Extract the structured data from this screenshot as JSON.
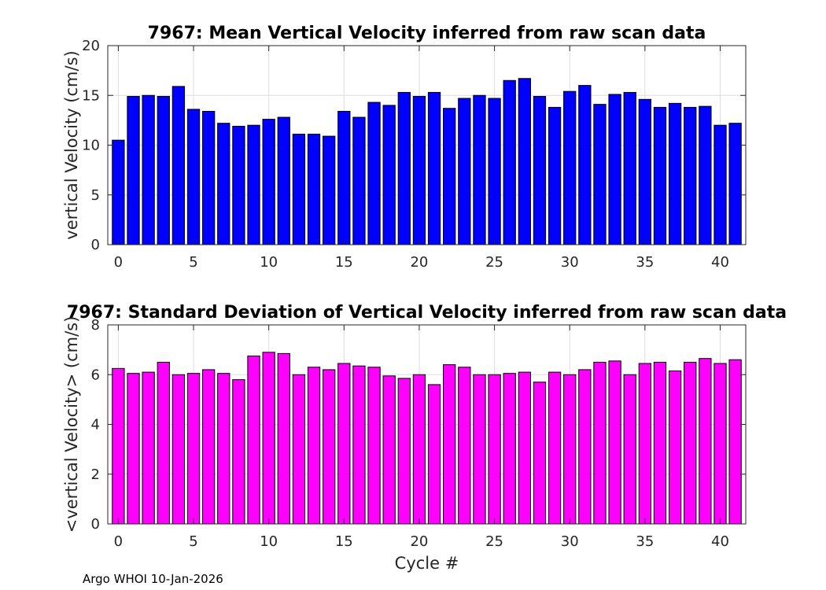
{
  "footer": "Argo WHOI 10-Jan-2026",
  "chart_data": [
    {
      "type": "bar",
      "title": "7967: Mean Vertical Velocity inferred from raw scan data",
      "xlabel": "",
      "ylabel": "vertical Velocity (cm/s)",
      "color": "#0000ff",
      "x": [
        0,
        1,
        2,
        3,
        4,
        5,
        6,
        7,
        8,
        9,
        10,
        11,
        12,
        13,
        14,
        15,
        16,
        17,
        18,
        19,
        20,
        21,
        22,
        23,
        24,
        25,
        26,
        27,
        28,
        29,
        30,
        31,
        32,
        33,
        34,
        35,
        36,
        37,
        38,
        39,
        40,
        41
      ],
      "values": [
        10.5,
        14.9,
        15.0,
        14.9,
        15.9,
        13.6,
        13.4,
        12.2,
        11.9,
        12.0,
        12.6,
        12.8,
        11.1,
        11.1,
        10.9,
        13.4,
        12.8,
        14.3,
        14.0,
        15.3,
        14.9,
        15.3,
        13.7,
        14.7,
        15.0,
        14.7,
        16.5,
        16.7,
        14.9,
        13.8,
        15.4,
        16.0,
        14.1,
        15.1,
        15.3,
        14.6,
        13.8,
        14.2,
        13.8,
        13.9,
        12.0,
        12.2
      ],
      "xlim": [
        -0.7,
        41.7
      ],
      "ylim": [
        0,
        20
      ],
      "xticks": [
        "0",
        "5",
        "10",
        "15",
        "20",
        "25",
        "30",
        "35",
        "40"
      ],
      "yticks": [
        "0",
        "5",
        "10",
        "15",
        "20"
      ],
      "grid": true
    },
    {
      "type": "bar",
      "title": "7967: Standard Deviation of Vertical Velocity inferred from raw scan data",
      "xlabel": "Cycle #",
      "ylabel": "<vertical Velocity> (cm/s)",
      "color": "#ff00ff",
      "x": [
        0,
        1,
        2,
        3,
        4,
        5,
        6,
        7,
        8,
        9,
        10,
        11,
        12,
        13,
        14,
        15,
        16,
        17,
        18,
        19,
        20,
        21,
        22,
        23,
        24,
        25,
        26,
        27,
        28,
        29,
        30,
        31,
        32,
        33,
        34,
        35,
        36,
        37,
        38,
        39,
        40,
        41
      ],
      "values": [
        6.25,
        6.05,
        6.1,
        6.5,
        6.0,
        6.05,
        6.2,
        6.05,
        5.8,
        6.75,
        6.9,
        6.85,
        6.0,
        6.3,
        6.2,
        6.45,
        6.35,
        6.3,
        5.95,
        5.85,
        6.0,
        5.6,
        6.4,
        6.3,
        6.0,
        6.0,
        6.05,
        6.1,
        5.7,
        6.1,
        6.0,
        6.2,
        6.5,
        6.55,
        6.0,
        6.45,
        6.5,
        6.15,
        6.5,
        6.65,
        6.45,
        6.6
      ],
      "xlim": [
        -0.7,
        41.7
      ],
      "ylim": [
        0,
        8
      ],
      "xticks": [
        "0",
        "5",
        "10",
        "15",
        "20",
        "25",
        "30",
        "35",
        "40"
      ],
      "yticks": [
        "0",
        "2",
        "4",
        "6",
        "8"
      ],
      "grid": true
    }
  ]
}
